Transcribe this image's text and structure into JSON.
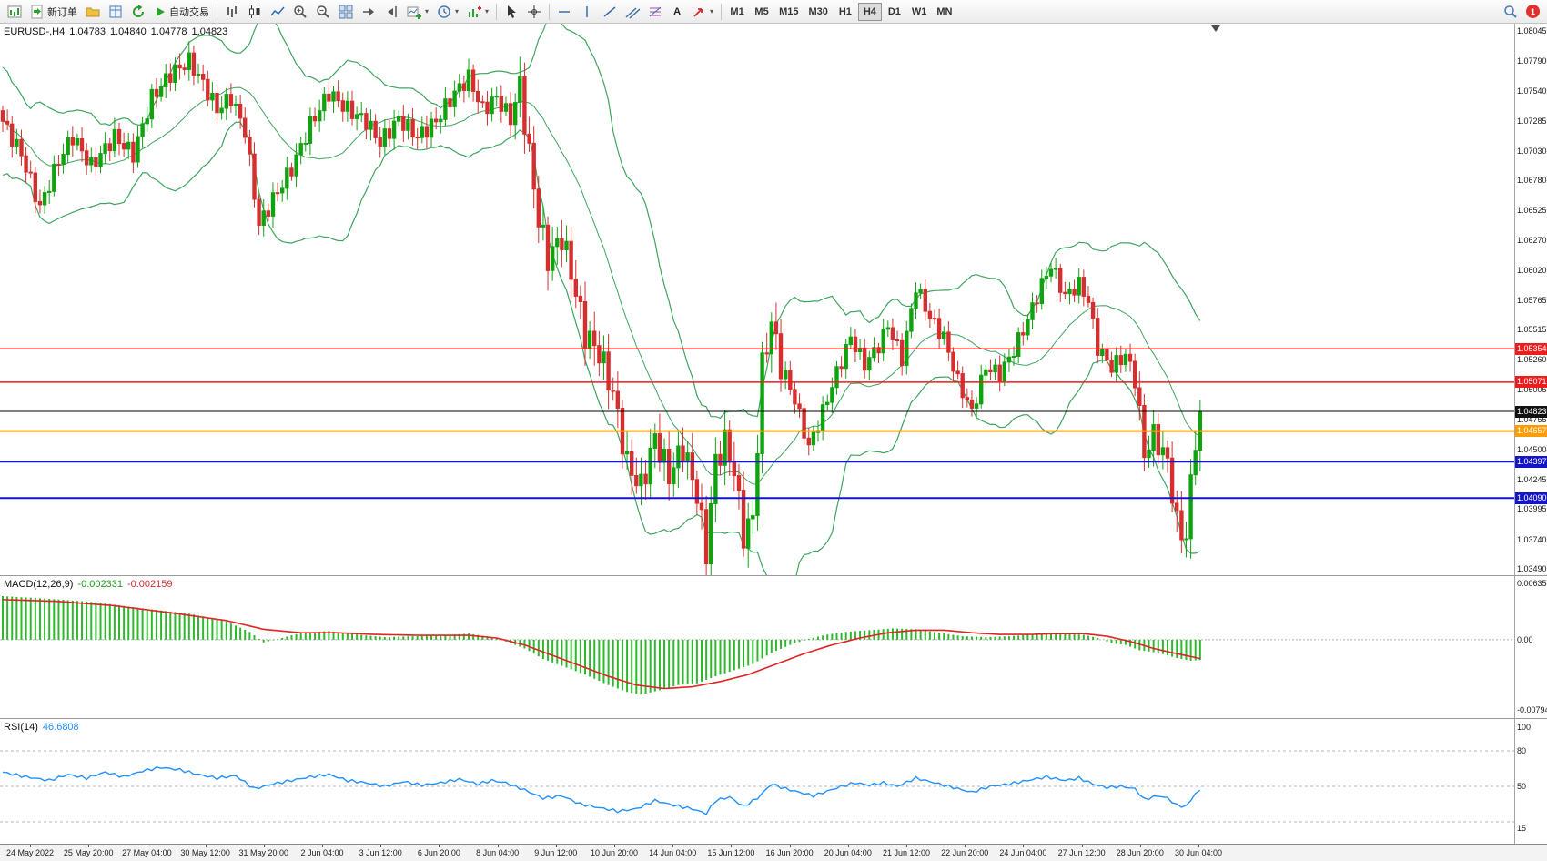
{
  "toolbar": {
    "new_order_label": "新订单",
    "autotrading_label": "自动交易",
    "text_tool_label": "A",
    "timeframes": [
      "M1",
      "M5",
      "M15",
      "M30",
      "H1",
      "H4",
      "D1",
      "W1",
      "MN"
    ],
    "active_timeframe": "H4",
    "notification_count": "1"
  },
  "chart": {
    "symbol_info": "EURUSD-,H4",
    "ohlc": {
      "open": "1.04783",
      "high": "1.04840",
      "low": "1.04778",
      "close": "1.04823"
    },
    "price_axis_labels": [
      "1.08045",
      "1.07790",
      "1.07540",
      "1.07285",
      "1.07030",
      "1.06780",
      "1.06525",
      "1.06270",
      "1.06020",
      "1.05765",
      "1.05515",
      "1.05260",
      "1.05005",
      "1.04755",
      "1.04500",
      "1.04245",
      "1.03995",
      "1.03740",
      "1.03490"
    ],
    "axis_top_price": 1.08045,
    "axis_bottom_price": 1.0349,
    "hlines": [
      {
        "price": 1.05354,
        "label": "1.05354",
        "color": "#ee1c1c",
        "label_bg": "#ee1c1c",
        "width": 1.5
      },
      {
        "price": 1.05071,
        "label": "1.05071",
        "color": "#ee1c1c",
        "label_bg": "#ee1c1c",
        "width": 1.5
      },
      {
        "price": 1.04823,
        "label": "1.04823",
        "color": "#000000",
        "label_bg": "#111111",
        "width": 1
      },
      {
        "price": 1.04657,
        "label": "1.04657",
        "color": "#ff9d00",
        "label_bg": "#ff9d00",
        "width": 2
      },
      {
        "price": 1.04397,
        "label": "1.04397",
        "color": "#1414c8",
        "label_bg": "#1414c8",
        "width": 2
      },
      {
        "price": 1.0409,
        "label": "1.04090",
        "color": "#1414c8",
        "label_bg": "#1414c8",
        "width": 2
      }
    ],
    "colors": {
      "up": "#0fa30f",
      "down": "#d62f2f",
      "bollinger": "#3fa45f",
      "macd_hist": "#2db82d",
      "macd_signal": "#e02424",
      "rsi": "#1e90ff",
      "grid": "#b5b5b5"
    }
  },
  "macd_panel": {
    "label": "MACD(12,26,9)",
    "value_main": "-0.002331",
    "value_signal": "-0.002159",
    "axis_top": "0.006359",
    "axis_zero": "0.00",
    "axis_bottom": "-0.007949"
  },
  "rsi_panel": {
    "label": "RSI(14)",
    "value": "46.6808",
    "axis_labels": [
      {
        "value": 100,
        "text": "100"
      },
      {
        "value": 80,
        "text": "80"
      },
      {
        "value": 50,
        "text": "50"
      },
      {
        "value": 15,
        "text": "15"
      }
    ],
    "levels": [
      80,
      50,
      20
    ]
  },
  "time_axis": {
    "labels": [
      "24 May 2022",
      "25 May 20:00",
      "27 May 04:00",
      "30 May 12:00",
      "31 May 20:00",
      "2 Jun 04:00",
      "3 Jun 12:00",
      "6 Jun 20:00",
      "8 Jun 04:00",
      "9 Jun 12:00",
      "10 Jun 20:00",
      "14 Jun 04:00",
      "15 Jun 12:00",
      "16 Jun 20:00",
      "20 Jun 04:00",
      "21 Jun 12:00",
      "22 Jun 20:00",
      "24 Jun 04:00",
      "27 Jun 12:00",
      "28 Jun 20:00",
      "30 Jun 04:00"
    ]
  },
  "chart_data": {
    "type": "candlestick",
    "symbol": "EURUSD-",
    "timeframe": "H4",
    "bars": 258,
    "price_range": [
      1.0349,
      1.08045
    ],
    "close_path": [
      [
        0,
        1.0728
      ],
      [
        4,
        1.07
      ],
      [
        8,
        1.0655
      ],
      [
        12,
        1.0695
      ],
      [
        15,
        1.0715
      ],
      [
        19,
        1.069
      ],
      [
        24,
        1.0715
      ],
      [
        28,
        1.07
      ],
      [
        32,
        1.0748
      ],
      [
        36,
        1.0768
      ],
      [
        40,
        1.0779
      ],
      [
        43,
        1.076
      ],
      [
        46,
        1.0738
      ],
      [
        49,
        1.0748
      ],
      [
        52,
        1.072
      ],
      [
        55,
        1.064
      ],
      [
        58,
        1.0662
      ],
      [
        62,
        1.0688
      ],
      [
        66,
        1.0725
      ],
      [
        70,
        1.0752
      ],
      [
        74,
        1.0738
      ],
      [
        78,
        1.0728
      ],
      [
        81,
        1.071
      ],
      [
        85,
        1.073
      ],
      [
        89,
        1.0715
      ],
      [
        93,
        1.0728
      ],
      [
        97,
        1.0752
      ],
      [
        100,
        1.0765
      ],
      [
        103,
        1.0738
      ],
      [
        106,
        1.0748
      ],
      [
        109,
        1.073
      ],
      [
        111,
        1.0758
      ],
      [
        113,
        1.07
      ],
      [
        115,
        1.0645
      ],
      [
        117,
        1.0612
      ],
      [
        120,
        1.063
      ],
      [
        122,
        1.06
      ],
      [
        125,
        1.0548
      ],
      [
        128,
        1.0532
      ],
      [
        131,
        1.0498
      ],
      [
        134,
        1.0438
      ],
      [
        137,
        1.0418
      ],
      [
        140,
        1.046
      ],
      [
        143,
        1.0428
      ],
      [
        146,
        1.0452
      ],
      [
        149,
        1.0412
      ],
      [
        151,
        1.0363
      ],
      [
        153,
        1.044
      ],
      [
        155,
        1.0456
      ],
      [
        157,
        1.0432
      ],
      [
        159,
        1.0378
      ],
      [
        161,
        1.0392
      ],
      [
        163,
        1.052
      ],
      [
        165,
        1.0558
      ],
      [
        167,
        1.0522
      ],
      [
        170,
        1.0492
      ],
      [
        173,
        1.0452
      ],
      [
        176,
        1.0482
      ],
      [
        179,
        1.0515
      ],
      [
        182,
        1.0545
      ],
      [
        185,
        1.0522
      ],
      [
        188,
        1.0538
      ],
      [
        190,
        1.0555
      ],
      [
        193,
        1.0527
      ],
      [
        196,
        1.0588
      ],
      [
        199,
        1.0562
      ],
      [
        202,
        1.0545
      ],
      [
        205,
        1.0508
      ],
      [
        208,
        1.0482
      ],
      [
        211,
        1.052
      ],
      [
        214,
        1.0514
      ],
      [
        217,
        1.0534
      ],
      [
        220,
        1.056
      ],
      [
        223,
        1.059
      ],
      [
        225,
        1.0606
      ],
      [
        228,
        1.058
      ],
      [
        231,
        1.059
      ],
      [
        233,
        1.0576
      ],
      [
        235,
        1.0536
      ],
      [
        238,
        1.052
      ],
      [
        241,
        1.053
      ],
      [
        243,
        1.0512
      ],
      [
        245,
        1.0446
      ],
      [
        247,
        1.0462
      ],
      [
        250,
        1.044
      ],
      [
        252,
        1.0386
      ],
      [
        254,
        1.0376
      ],
      [
        256,
        1.0462
      ],
      [
        257,
        1.04823
      ]
    ],
    "wiggle": 0.0007,
    "volatility_regions": [
      [
        0,
        110,
        1.0
      ],
      [
        110,
        168,
        1.7
      ],
      [
        168,
        243,
        0.9
      ],
      [
        243,
        252,
        1.4
      ],
      [
        252,
        258,
        1.8
      ]
    ],
    "bollinger_period": 20,
    "bollinger_deviation": 2,
    "macd_range": {
      "top": 0.006359,
      "bottom": -0.007949
    },
    "macd_hist_path": [
      [
        0,
        0.005
      ],
      [
        10,
        0.0047
      ],
      [
        20,
        0.0043
      ],
      [
        30,
        0.0036
      ],
      [
        40,
        0.003
      ],
      [
        48,
        0.0021
      ],
      [
        53,
        0.0009
      ],
      [
        56,
        -0.0003
      ],
      [
        60,
        0.0002
      ],
      [
        64,
        0.0008
      ],
      [
        70,
        0.001
      ],
      [
        76,
        0.0006
      ],
      [
        82,
        0.0003
      ],
      [
        88,
        0.0004
      ],
      [
        94,
        0.0005
      ],
      [
        100,
        0.0007
      ],
      [
        105,
        0.0003
      ],
      [
        108,
        -0.0002
      ],
      [
        112,
        -0.001
      ],
      [
        116,
        -0.0022
      ],
      [
        120,
        -0.003
      ],
      [
        125,
        -0.004
      ],
      [
        130,
        -0.0052
      ],
      [
        134,
        -0.006
      ],
      [
        137,
        -0.0063
      ],
      [
        141,
        -0.0058
      ],
      [
        145,
        -0.0052
      ],
      [
        149,
        -0.005
      ],
      [
        153,
        -0.0042
      ],
      [
        157,
        -0.0035
      ],
      [
        161,
        -0.0028
      ],
      [
        165,
        -0.0015
      ],
      [
        169,
        -0.0006
      ],
      [
        173,
        0.0001
      ],
      [
        177,
        0.0006
      ],
      [
        181,
        0.0009
      ],
      [
        186,
        0.0011
      ],
      [
        191,
        0.0013
      ],
      [
        196,
        0.0012
      ],
      [
        201,
        0.0008
      ],
      [
        206,
        0.0004
      ],
      [
        211,
        0.0003
      ],
      [
        216,
        0.0004
      ],
      [
        221,
        0.0006
      ],
      [
        226,
        0.0008
      ],
      [
        231,
        0.0007
      ],
      [
        235,
        0.0002
      ],
      [
        238,
        -0.0004
      ],
      [
        241,
        -0.0006
      ],
      [
        244,
        -0.0012
      ],
      [
        248,
        -0.0015
      ],
      [
        252,
        -0.0021
      ],
      [
        255,
        -0.0024
      ],
      [
        257,
        -0.002331
      ]
    ],
    "macd_signal_path": [
      [
        0,
        0.0046
      ],
      [
        12,
        0.0044
      ],
      [
        24,
        0.0039
      ],
      [
        36,
        0.0031
      ],
      [
        48,
        0.0022
      ],
      [
        56,
        0.0012
      ],
      [
        64,
        0.0008
      ],
      [
        72,
        0.0008
      ],
      [
        80,
        0.0006
      ],
      [
        90,
        0.0005
      ],
      [
        100,
        0.0005
      ],
      [
        106,
        0.0002
      ],
      [
        112,
        -0.0006
      ],
      [
        118,
        -0.0018
      ],
      [
        124,
        -0.003
      ],
      [
        130,
        -0.0042
      ],
      [
        136,
        -0.0052
      ],
      [
        142,
        -0.0056
      ],
      [
        148,
        -0.0054
      ],
      [
        154,
        -0.0048
      ],
      [
        160,
        -0.004
      ],
      [
        166,
        -0.0028
      ],
      [
        172,
        -0.0016
      ],
      [
        178,
        -0.0006
      ],
      [
        184,
        0.0002
      ],
      [
        190,
        0.0008
      ],
      [
        196,
        0.0011
      ],
      [
        202,
        0.0011
      ],
      [
        208,
        0.0008
      ],
      [
        214,
        0.0006
      ],
      [
        220,
        0.0006
      ],
      [
        226,
        0.0007
      ],
      [
        232,
        0.0007
      ],
      [
        237,
        0.0004
      ],
      [
        242,
        -0.0002
      ],
      [
        247,
        -0.001
      ],
      [
        252,
        -0.0016
      ],
      [
        257,
        -0.002159
      ]
    ],
    "rsi_path": [
      [
        0,
        62
      ],
      [
        5,
        58
      ],
      [
        10,
        55
      ],
      [
        14,
        60
      ],
      [
        18,
        57
      ],
      [
        22,
        62
      ],
      [
        26,
        58
      ],
      [
        30,
        63
      ],
      [
        34,
        66
      ],
      [
        38,
        64
      ],
      [
        42,
        60
      ],
      [
        46,
        57
      ],
      [
        50,
        59
      ],
      [
        54,
        48
      ],
      [
        58,
        52
      ],
      [
        62,
        55
      ],
      [
        66,
        58
      ],
      [
        70,
        60
      ],
      [
        74,
        55
      ],
      [
        78,
        53
      ],
      [
        82,
        50
      ],
      [
        86,
        54
      ],
      [
        90,
        51
      ],
      [
        94,
        53
      ],
      [
        98,
        56
      ],
      [
        102,
        52
      ],
      [
        105,
        55
      ],
      [
        108,
        53
      ],
      [
        112,
        47
      ],
      [
        116,
        40
      ],
      [
        120,
        42
      ],
      [
        124,
        35
      ],
      [
        128,
        32
      ],
      [
        132,
        29
      ],
      [
        136,
        31
      ],
      [
        140,
        38
      ],
      [
        144,
        34
      ],
      [
        148,
        31
      ],
      [
        151,
        27
      ],
      [
        153,
        38
      ],
      [
        156,
        41
      ],
      [
        159,
        33
      ],
      [
        162,
        40
      ],
      [
        165,
        52
      ],
      [
        168,
        48
      ],
      [
        171,
        45
      ],
      [
        174,
        42
      ],
      [
        177,
        46
      ],
      [
        180,
        50
      ],
      [
        183,
        53
      ],
      [
        186,
        51
      ],
      [
        189,
        53
      ],
      [
        192,
        50
      ],
      [
        196,
        57
      ],
      [
        200,
        53
      ],
      [
        204,
        49
      ],
      [
        208,
        45
      ],
      [
        212,
        50
      ],
      [
        216,
        52
      ],
      [
        220,
        55
      ],
      [
        224,
        58
      ],
      [
        228,
        55
      ],
      [
        231,
        57
      ],
      [
        234,
        52
      ],
      [
        237,
        49
      ],
      [
        240,
        50
      ],
      [
        243,
        48
      ],
      [
        245,
        39
      ],
      [
        248,
        42
      ],
      [
        250,
        40
      ],
      [
        252,
        34
      ],
      [
        254,
        33
      ],
      [
        256,
        44
      ],
      [
        257,
        46.68
      ]
    ],
    "rsi_wiggle": 1.2,
    "rsi_last": 46.68
  }
}
